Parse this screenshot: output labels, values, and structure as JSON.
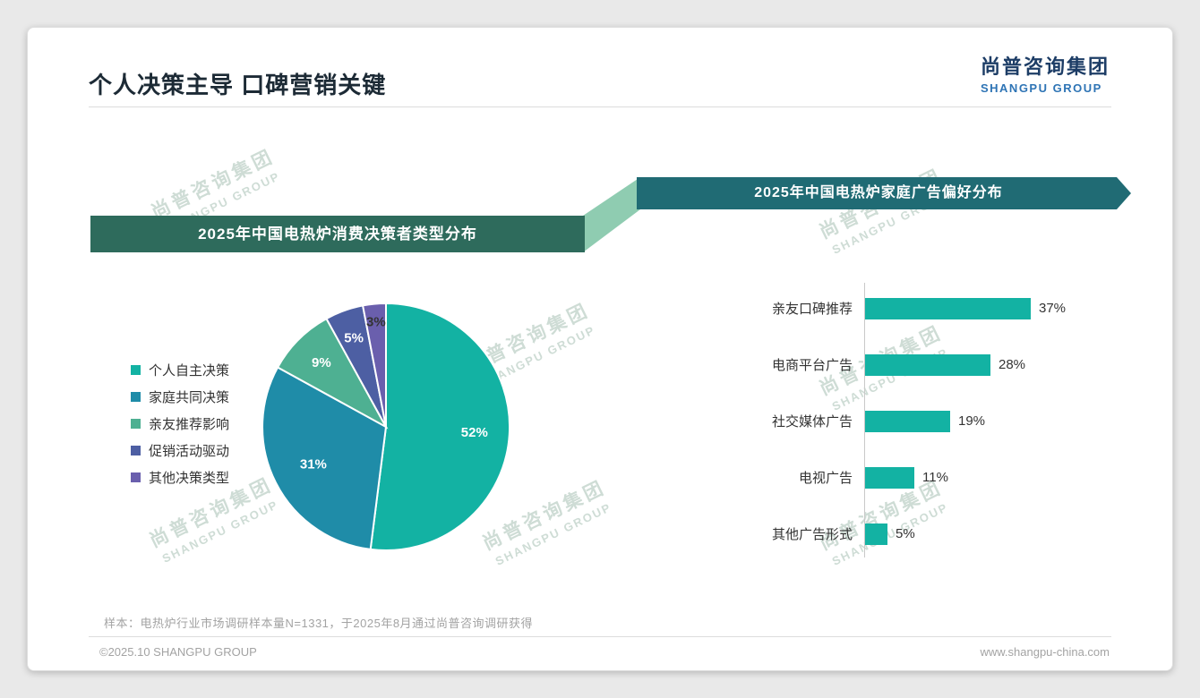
{
  "page": {
    "title": "个人决策主导 口碑营销关键",
    "logo": {
      "cn": "尚普咨询集团",
      "en": "SHANGPU GROUP"
    },
    "watermark": {
      "cn": "尚普咨询集团",
      "en": "SHANGPU GROUP"
    },
    "footer": {
      "note": "样本：电热炉行业市场调研样本量N=1331，于2025年8月通过尚普咨询调研获得",
      "copyright": "©2025.10 SHANGPU GROUP",
      "website": "www.shangpu-china.com"
    }
  },
  "theme": {
    "accent_teal": "#13b2a3",
    "banner_left_bg": "#2e6b5c",
    "banner_right_bg": "#206b74",
    "connector_green": "#8fccb1",
    "logo_navy": "#1d3d66",
    "logo_blue": "#2e74b5"
  },
  "chart_data": [
    {
      "type": "pie",
      "title": "2025年中国电热炉消费决策者类型分布",
      "labels": [
        "个人自主决策",
        "家庭共同决策",
        "亲友推荐影响",
        "促销活动驱动",
        "其他决策类型"
      ],
      "values": [
        52,
        31,
        9,
        5,
        3
      ],
      "unit": "%",
      "colors": [
        "#13b2a3",
        "#1f8ca8",
        "#4eb092",
        "#4d5fa3",
        "#6a5fad"
      ],
      "legend_position": "left",
      "data_labels": [
        "52%",
        "31%",
        "9%",
        "5%",
        "3%"
      ]
    },
    {
      "type": "bar",
      "title": "2025年中国电热炉家庭广告偏好分布",
      "orientation": "horizontal",
      "categories": [
        "亲友口碑推荐",
        "电商平台广告",
        "社交媒体广告",
        "电视广告",
        "其他广告形式"
      ],
      "values": [
        37,
        28,
        19,
        11,
        5
      ],
      "unit": "%",
      "bar_color": "#13b2a3",
      "xlim": [
        0,
        40
      ],
      "grid": false
    }
  ]
}
